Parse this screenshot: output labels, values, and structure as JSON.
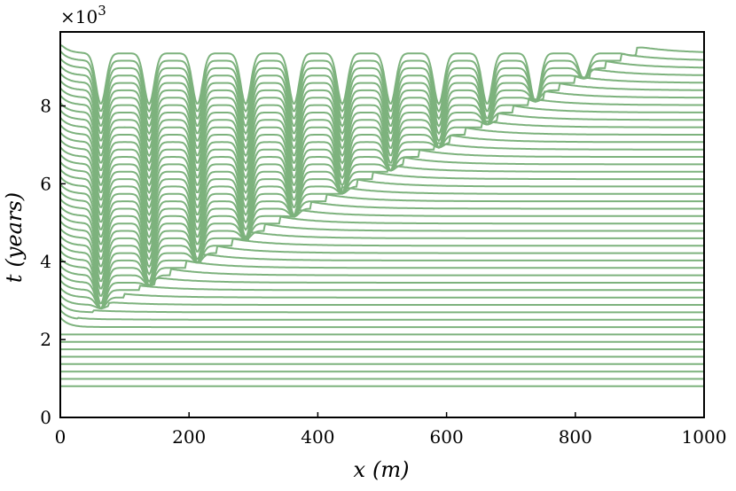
{
  "chart_data": {
    "type": "line",
    "title": "",
    "xlabel_var": "x",
    "xlabel_unit": "(m)",
    "ylabel_var": "t",
    "ylabel_unit": "(years)",
    "y_multiplier": "×10",
    "y_multiplier_exp": "3",
    "xlim": [
      0,
      1000
    ],
    "ylim": [
      0,
      9.9
    ],
    "x_ticks": [
      0,
      200,
      400,
      600,
      800,
      1000
    ],
    "x_tick_labels": [
      "0",
      "200",
      "400",
      "600",
      "800",
      "1000"
    ],
    "y_ticks": [
      0,
      2,
      4,
      6,
      8
    ],
    "y_tick_labels": [
      "0",
      "2",
      "4",
      "6",
      "8"
    ],
    "grid": false,
    "line_color": "#7db27d",
    "series_count": 46,
    "series_y0": 0.8,
    "series_spacing": 0.19,
    "wave_period_m": 75,
    "wave_first_trough_m": 63,
    "wave_front_speed_m_per_kyr": 127,
    "wave_onset_kyr": 2.3,
    "saturation_height_kyr": 1.3,
    "trough_halfwidth_m": 12
  }
}
